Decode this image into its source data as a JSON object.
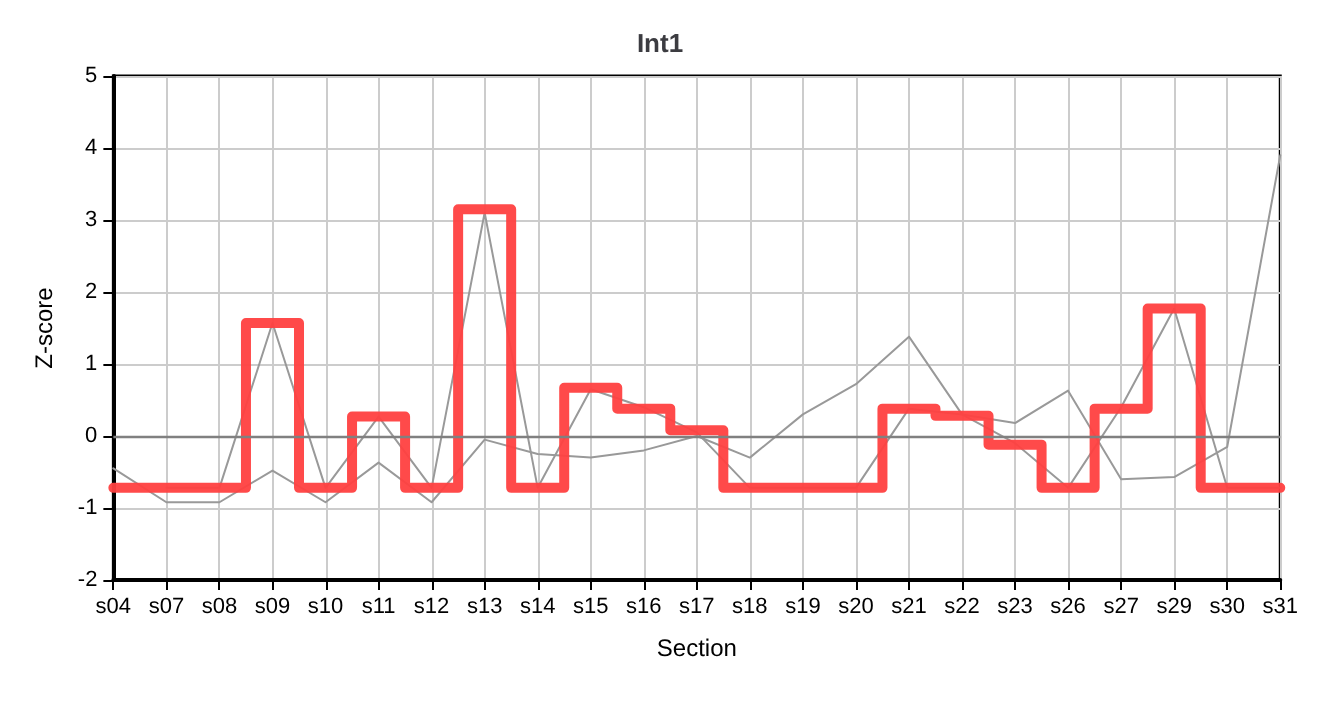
{
  "chart_data": {
    "type": "line",
    "title": "Int1",
    "xlabel": "Section",
    "ylabel": "Z-score",
    "categories": [
      "s04",
      "s07",
      "s08",
      "s09",
      "s10",
      "s11",
      "s12",
      "s13",
      "s14",
      "s15",
      "s16",
      "s17",
      "s18",
      "s19",
      "s20",
      "s21",
      "s22",
      "s23",
      "s26",
      "s27",
      "s29",
      "s30",
      "s31"
    ],
    "series": [
      {
        "color": "#999999",
        "values": [
          -0.45,
          -0.92,
          -0.92,
          -0.48,
          -0.92,
          -0.37,
          -0.92,
          -0.05,
          -0.25,
          -0.3,
          -0.2,
          0.0,
          -0.3,
          0.3,
          0.72,
          1.38,
          0.3,
          0.18,
          0.63,
          -0.6,
          -0.57,
          -0.15,
          3.9
        ]
      },
      {
        "color": "#999999",
        "values": [
          null,
          -0.72,
          -0.72,
          1.57,
          -0.72,
          0.27,
          -0.72,
          3.1,
          -0.72,
          0.65,
          0.4,
          0.05,
          -0.72,
          -0.72,
          -0.72,
          0.38,
          0.3,
          -0.1,
          -0.72,
          0.4,
          1.77,
          -0.72,
          -0.72
        ]
      },
      {
        "type": "step",
        "color": "#ff4040",
        "values": [
          -0.72,
          -0.72,
          -0.72,
          1.57,
          -0.72,
          0.27,
          -0.72,
          3.15,
          -0.72,
          0.67,
          0.38,
          0.08,
          -0.72,
          -0.72,
          -0.72,
          0.38,
          0.28,
          -0.12,
          -0.72,
          0.38,
          1.77,
          -0.72,
          -0.72
        ]
      }
    ],
    "ylim": [
      -2,
      5
    ],
    "yticks": [
      -2,
      -1,
      0,
      1,
      2,
      3,
      4,
      5
    ],
    "grid": true,
    "ref_lines": [
      {
        "axis": "y",
        "value": 0,
        "color": "#808080"
      }
    ]
  }
}
